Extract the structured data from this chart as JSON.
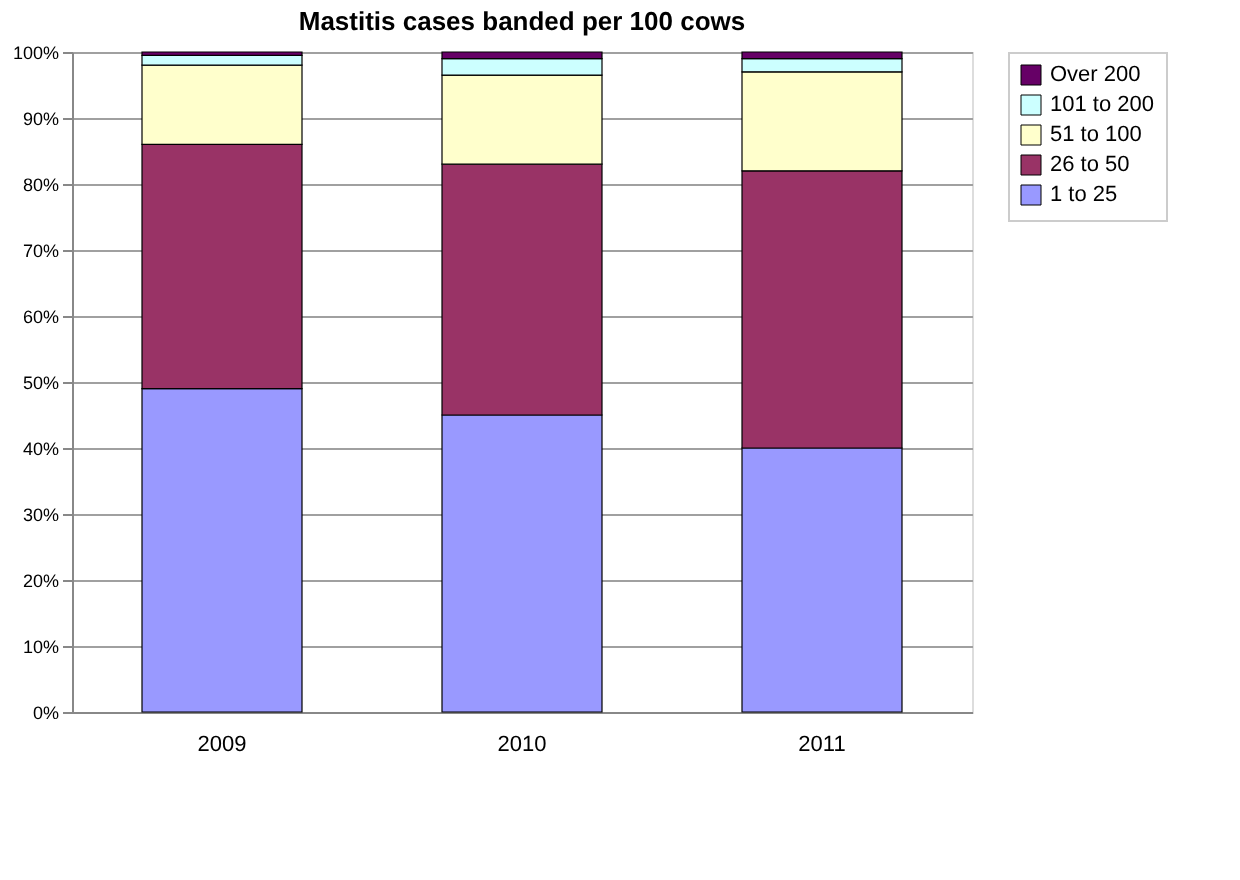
{
  "chart_data": {
    "type": "bar",
    "title": "Mastitis cases banded per 100 cows",
    "stacked": true,
    "categories": [
      "2009",
      "2010",
      "2011"
    ],
    "series": [
      {
        "name": "1 to 25",
        "color": "#9999ff",
        "values": [
          49,
          45,
          40
        ]
      },
      {
        "name": "26 to 50",
        "color": "#993366",
        "values": [
          37,
          38,
          42
        ]
      },
      {
        "name": "51 to 100",
        "color": "#ffffcc",
        "values": [
          12,
          13.5,
          15
        ]
      },
      {
        "name": "101 to 200",
        "color": "#ccffff",
        "values": [
          1.5,
          2.5,
          2
        ]
      },
      {
        "name": "Over 200",
        "color": "#660066",
        "values": [
          0.5,
          1,
          1
        ]
      }
    ],
    "ylim": [
      0,
      100
    ],
    "yticks": [
      {
        "value": 0,
        "label": "0%"
      },
      {
        "value": 10,
        "label": "10%"
      },
      {
        "value": 20,
        "label": "20%"
      },
      {
        "value": 30,
        "label": "30%"
      },
      {
        "value": 40,
        "label": "40%"
      },
      {
        "value": 50,
        "label": "50%"
      },
      {
        "value": 60,
        "label": "60%"
      },
      {
        "value": 70,
        "label": "70%"
      },
      {
        "value": 80,
        "label": "80%"
      },
      {
        "value": 90,
        "label": "90%"
      },
      {
        "value": 100,
        "label": "100%"
      }
    ],
    "grid": "y",
    "legend": "right"
  }
}
